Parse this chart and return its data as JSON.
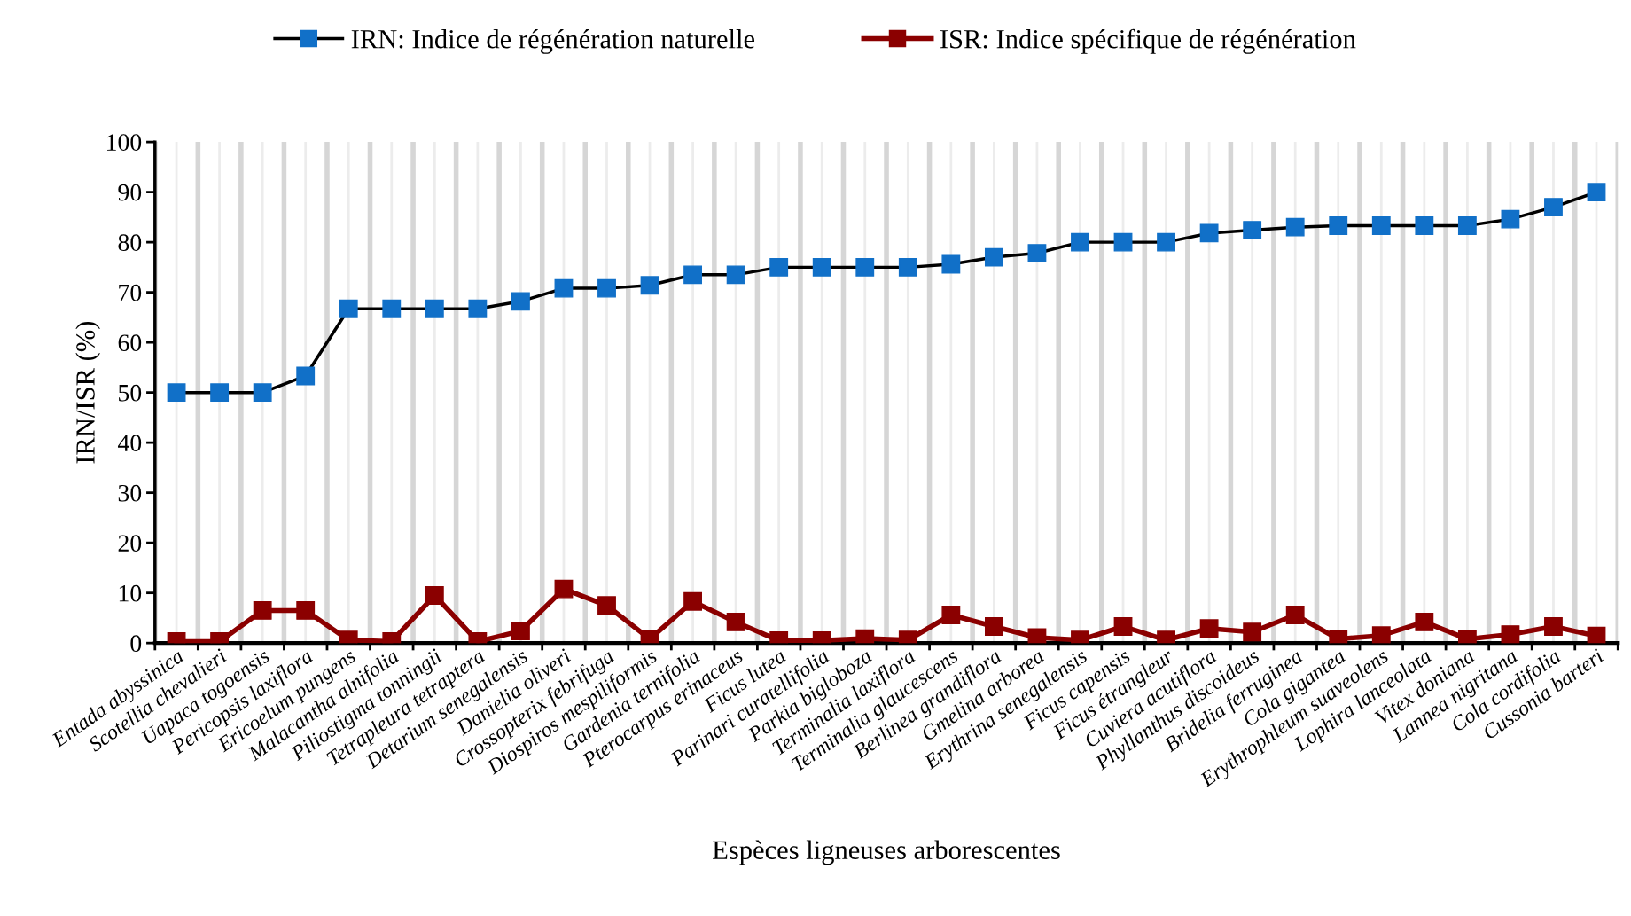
{
  "chart_data": {
    "type": "line",
    "xlabel": "Espèces ligneuses arborescentes",
    "ylabel": "IRN/ISR (%)",
    "categories": [
      "Entada abyssinica",
      "Scotellia chevalieri",
      "Uapaca togoensis",
      "Pericopsis laxiflora",
      "Ericoelum pungens",
      "Malacantha alnifolia",
      "Piliostigma tonningii",
      "Tetrapleura tetraptera",
      "Detarium senegalensis",
      "Danielia oliveri",
      "Crossopterix febrifuga",
      "Diospiros mespiliformis",
      "Gardenia ternifolia",
      "Pterocarpus erinaceus",
      "Ficus lutea",
      "Parinari curatellifolia",
      "Parkia bigloboza",
      "Terminalia laxiflora",
      "Terminalia glaucescens",
      "Berlinea grandiflora",
      "Gmelina arborea",
      "Erythrina senegalensis",
      "Ficus capensis",
      "Ficus étrangleur",
      "Cuviera acutiflora",
      "Phyllanthus discoideus",
      "Bridelia ferruginea",
      "Cola gigantea",
      "Erythrophleum suaveolens",
      "Lophira lanceolata",
      "Vitex doniana",
      "Lannea nigritana",
      "Cola cordifolia",
      "Cussonia barteri"
    ],
    "series": [
      {
        "name": "IRN: Indice de régénération naturelle",
        "color": "#1170c8",
        "values": [
          50,
          50,
          50,
          53.3,
          66.7,
          66.7,
          66.7,
          66.7,
          68.2,
          70.8,
          70.8,
          71.4,
          73.5,
          73.5,
          75,
          75,
          75,
          75,
          75.6,
          77,
          77.8,
          80,
          80,
          80,
          81.8,
          82.4,
          83,
          83.3,
          83.3,
          83.3,
          83.3,
          84.6,
          87,
          90
        ]
      },
      {
        "name": "ISR: Indice spécifique de régénération",
        "color": "#8b0000",
        "values": [
          0.3,
          0.3,
          6.5,
          6.5,
          0.6,
          0.3,
          9.5,
          0.3,
          2.4,
          10.8,
          7.5,
          0.8,
          8.3,
          4.2,
          0.5,
          0.5,
          0.9,
          0.6,
          5.6,
          3.3,
          1.1,
          0.6,
          3.3,
          0.6,
          2.9,
          2.2,
          5.6,
          0.8,
          1.5,
          4.2,
          0.8,
          1.7,
          3.3,
          1.4
        ]
      }
    ],
    "ylim": [
      0,
      100
    ],
    "yticks": [
      0,
      10,
      20,
      30,
      40,
      50,
      60,
      70,
      80,
      90,
      100
    ],
    "grid": "x",
    "legend": "top",
    "marker": "square",
    "line_style": "solid"
  }
}
